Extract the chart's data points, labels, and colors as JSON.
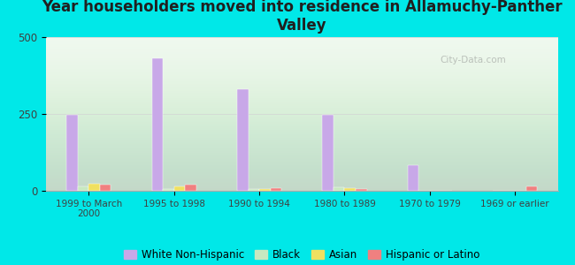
{
  "title": "Year householders moved into residence in Allamuchy-Panther\nValley",
  "categories": [
    "1999 to March\n2000",
    "1995 to 1998",
    "1990 to 1994",
    "1980 to 1989",
    "1970 to 1979",
    "1969 or earlier"
  ],
  "series": {
    "White Non-Hispanic": [
      248,
      432,
      330,
      248,
      82,
      0
    ],
    "Black": [
      15,
      5,
      5,
      12,
      0,
      0
    ],
    "Asian": [
      22,
      15,
      7,
      10,
      0,
      0
    ],
    "Hispanic or Latino": [
      20,
      20,
      10,
      5,
      0,
      15
    ]
  },
  "colors": {
    "White Non-Hispanic": "#c8a8e8",
    "Black": "#c8e8c0",
    "Asian": "#f0e060",
    "Hispanic or Latino": "#f08080"
  },
  "ylim": [
    0,
    500
  ],
  "yticks": [
    0,
    250,
    500
  ],
  "background_color": "#00e8e8",
  "watermark": "City-Data.com",
  "title_fontsize": 12,
  "legend_fontsize": 8.5
}
